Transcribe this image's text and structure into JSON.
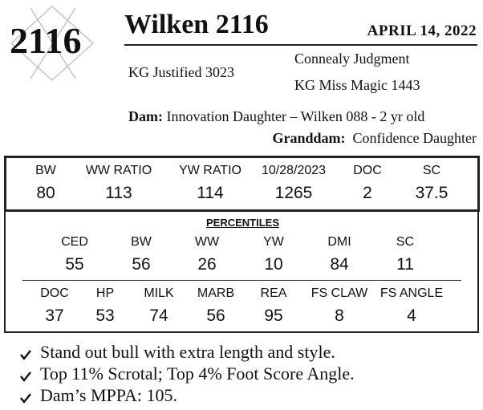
{
  "lot_number": "2116",
  "name": "Wilken 2116",
  "date": "APRIL  14, 2022",
  "pedigree": {
    "sire": "KG Justified 3023",
    "sire_sire": "Connealy Judgment",
    "sire_dam": "KG Miss Magic 1443",
    "dam": {
      "label": "Dam:",
      "text": "Innovation Daughter – Wilken 088 - 2 yr old"
    },
    "granddam": {
      "label": "Granddam:",
      "text": "Confidence Daughter"
    }
  },
  "epd": {
    "headers": [
      "BW",
      "WW RATIO",
      "YW RATIO",
      "10/28/2023",
      "DOC",
      "SC"
    ],
    "values": [
      80,
      113,
      114,
      1265,
      2,
      37.5
    ]
  },
  "percentiles": {
    "title": "PERCENTILES",
    "rows": [
      {
        "headers": [
          "CED",
          "BW",
          "WW",
          "YW",
          "DMI",
          "SC"
        ],
        "values": [
          55,
          56,
          26,
          10,
          84,
          11
        ]
      },
      {
        "headers": [
          "DOC",
          "HP",
          "MILK",
          "MARB",
          "REA",
          "FS CLAW",
          "FS ANGLE"
        ],
        "values": [
          37,
          53,
          74,
          56,
          95,
          8,
          4
        ]
      }
    ]
  },
  "bullets": [
    "Stand out bull with extra length and style.",
    "Top 11% Scrotal; Top 4% Foot Score Angle.",
    "Dam’s MPPA: 105."
  ]
}
